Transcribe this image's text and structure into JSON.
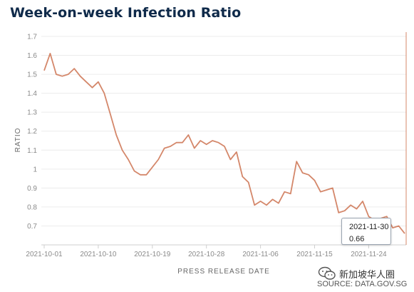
{
  "chart_data": {
    "type": "line",
    "title": "Week-on-week Infection Ratio",
    "xlabel": "PRESS RELEASE DATE",
    "ylabel": "RATIO",
    "ylim": [
      0.6,
      1.7
    ],
    "yticks": [
      "0.7",
      "0.8",
      "0.9",
      "1",
      "1.1",
      "1.2",
      "1.3",
      "1.4",
      "1.5",
      "1.6",
      "1.7"
    ],
    "xticks": [
      "2021-10-01",
      "2021-10-10",
      "2021-10-19",
      "2021-10-28",
      "2021-11-06",
      "2021-11-15",
      "2021-11-24"
    ],
    "x_start": "2021-10-01",
    "x_end": "2021-11-30",
    "grid": "horizontal",
    "line_color": "#d4876a",
    "series": [
      {
        "values": [
          1.52,
          1.61,
          1.5,
          1.49,
          1.5,
          1.53,
          1.49,
          1.46,
          1.43,
          1.46,
          1.4,
          1.29,
          1.18,
          1.1,
          1.05,
          0.99,
          0.97,
          0.97,
          1.01,
          1.05,
          1.11,
          1.12,
          1.14,
          1.14,
          1.18,
          1.11,
          1.15,
          1.13,
          1.15,
          1.14,
          1.12,
          1.05,
          1.09,
          0.96,
          0.93,
          0.81,
          0.83,
          0.81,
          0.84,
          0.82,
          0.88,
          0.87,
          1.04,
          0.98,
          0.97,
          0.94,
          0.88,
          0.89,
          0.9,
          0.77,
          0.78,
          0.81,
          0.79,
          0.83,
          0.75,
          0.73,
          0.74,
          0.75,
          0.69,
          0.7,
          0.66
        ]
      }
    ],
    "tooltip": {
      "date": "2021-11-30",
      "value": "0.66"
    }
  },
  "watermark": {
    "text": "新加坡华人圈",
    "icon": "wechat-icon"
  },
  "source": "SOURCE: DATA.GOV.SG"
}
